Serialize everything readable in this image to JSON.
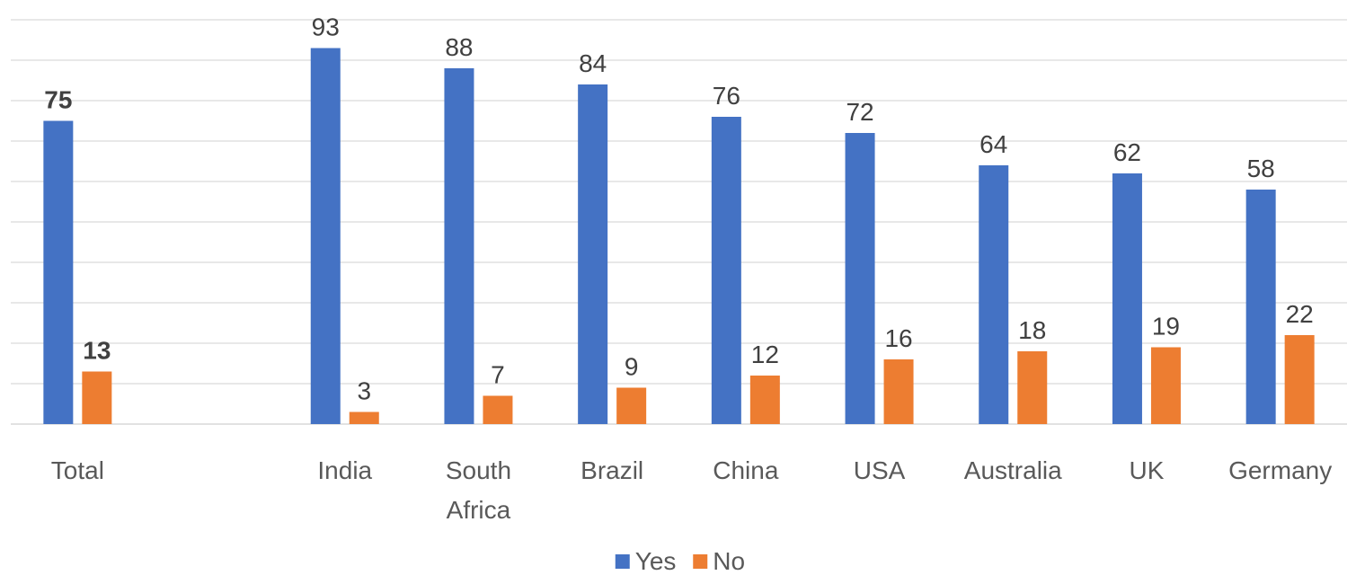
{
  "chart_data": {
    "type": "bar",
    "categories": [
      "Total",
      "",
      "India",
      "South Africa",
      "Brazil",
      "China",
      "USA",
      "Australia",
      "UK",
      "Germany"
    ],
    "category_lines": [
      [
        "Total"
      ],
      [],
      [
        "India"
      ],
      [
        "South",
        "Africa"
      ],
      [
        "Brazil"
      ],
      [
        "China"
      ],
      [
        "USA"
      ],
      [
        "Australia"
      ],
      [
        "UK"
      ],
      [
        "Germany"
      ]
    ],
    "series": [
      {
        "name": "Yes",
        "color": "#4472c4",
        "values": [
          75,
          null,
          93,
          88,
          84,
          76,
          72,
          64,
          62,
          58
        ]
      },
      {
        "name": "No",
        "color": "#ed7d31",
        "values": [
          13,
          null,
          3,
          7,
          9,
          12,
          16,
          18,
          19,
          22
        ]
      }
    ],
    "bold_label_categories": [
      "Total"
    ],
    "ylim": [
      0,
      100
    ],
    "gridline_step": 10,
    "grid": true,
    "y_axis_labels_shown": false,
    "legend_position": "bottom",
    "title": "",
    "xlabel": "",
    "ylabel": ""
  }
}
